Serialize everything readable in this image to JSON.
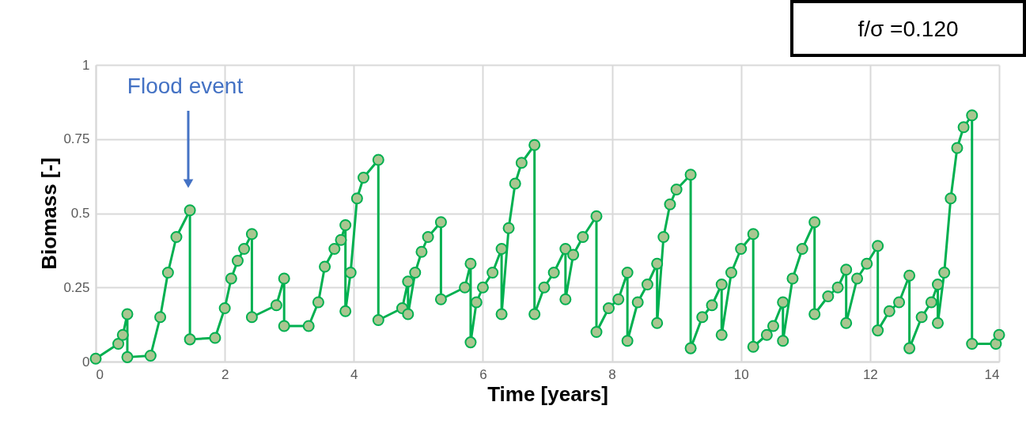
{
  "chart_data": {
    "type": "line",
    "xlabel": "Time [years]",
    "ylabel": "Biomass [-]",
    "xlim": [
      0,
      14
    ],
    "xticks": [
      0,
      2,
      4,
      6,
      8,
      10,
      12,
      14
    ],
    "ylim": [
      0,
      1
    ],
    "yticks": [
      0,
      0.25,
      0.5,
      0.75,
      1
    ],
    "grid": true,
    "marker": "circle",
    "annotations": [
      "Flood event",
      "f/σ =0.120"
    ],
    "series": [
      {
        "color": "#00b050",
        "x": [
          0,
          0.35,
          0.42,
          0.49,
          0.49,
          0.85,
          1.0,
          1.12,
          1.25,
          1.46,
          1.46,
          1.85,
          2.0,
          2.1,
          2.2,
          2.3,
          2.42,
          2.42,
          2.8,
          2.92,
          2.92,
          3.3,
          3.45,
          3.55,
          3.7,
          3.8,
          3.87,
          3.87,
          3.95,
          4.05,
          4.15,
          4.38,
          4.38,
          4.75,
          4.84,
          4.84,
          4.95,
          5.05,
          5.15,
          5.35,
          5.35,
          5.72,
          5.81,
          5.81,
          5.9,
          6.0,
          6.15,
          6.29,
          6.29,
          6.4,
          6.5,
          6.6,
          6.8,
          6.8,
          6.95,
          7.1,
          7.28,
          7.28,
          7.4,
          7.55,
          7.76,
          7.76,
          7.95,
          8.1,
          8.24,
          8.24,
          8.4,
          8.55,
          8.7,
          8.7,
          8.8,
          8.9,
          9.0,
          9.22,
          9.22,
          9.4,
          9.55,
          9.7,
          9.7,
          9.85,
          10.0,
          10.19,
          10.19,
          10.4,
          10.5,
          10.65,
          10.65,
          10.8,
          10.95,
          11.14,
          11.14,
          11.35,
          11.5,
          11.63,
          11.63,
          11.8,
          11.95,
          12.12,
          12.12,
          12.3,
          12.45,
          12.61,
          12.61,
          12.8,
          12.95,
          13.05,
          13.05,
          13.15,
          13.25,
          13.35,
          13.45,
          13.58,
          13.58,
          13.95,
          14
        ],
        "values": [
          0.01,
          0.06,
          0.09,
          0.16,
          0.015,
          0.02,
          0.15,
          0.3,
          0.42,
          0.51,
          0.075,
          0.08,
          0.18,
          0.28,
          0.34,
          0.38,
          0.43,
          0.15,
          0.19,
          0.28,
          0.12,
          0.12,
          0.2,
          0.32,
          0.38,
          0.41,
          0.46,
          0.17,
          0.3,
          0.55,
          0.62,
          0.68,
          0.14,
          0.18,
          0.27,
          0.16,
          0.3,
          0.37,
          0.42,
          0.47,
          0.21,
          0.25,
          0.33,
          0.065,
          0.2,
          0.25,
          0.3,
          0.38,
          0.16,
          0.45,
          0.6,
          0.67,
          0.73,
          0.16,
          0.25,
          0.3,
          0.38,
          0.21,
          0.36,
          0.42,
          0.49,
          0.1,
          0.18,
          0.21,
          0.3,
          0.07,
          0.2,
          0.26,
          0.33,
          0.13,
          0.42,
          0.53,
          0.58,
          0.63,
          0.045,
          0.15,
          0.19,
          0.26,
          0.09,
          0.3,
          0.38,
          0.43,
          0.05,
          0.09,
          0.12,
          0.2,
          0.07,
          0.28,
          0.38,
          0.47,
          0.16,
          0.22,
          0.25,
          0.31,
          0.13,
          0.28,
          0.33,
          0.39,
          0.105,
          0.17,
          0.2,
          0.29,
          0.045,
          0.15,
          0.2,
          0.26,
          0.13,
          0.3,
          0.55,
          0.72,
          0.79,
          0.83,
          0.06,
          0.06,
          0.09
        ]
      }
    ]
  }
}
